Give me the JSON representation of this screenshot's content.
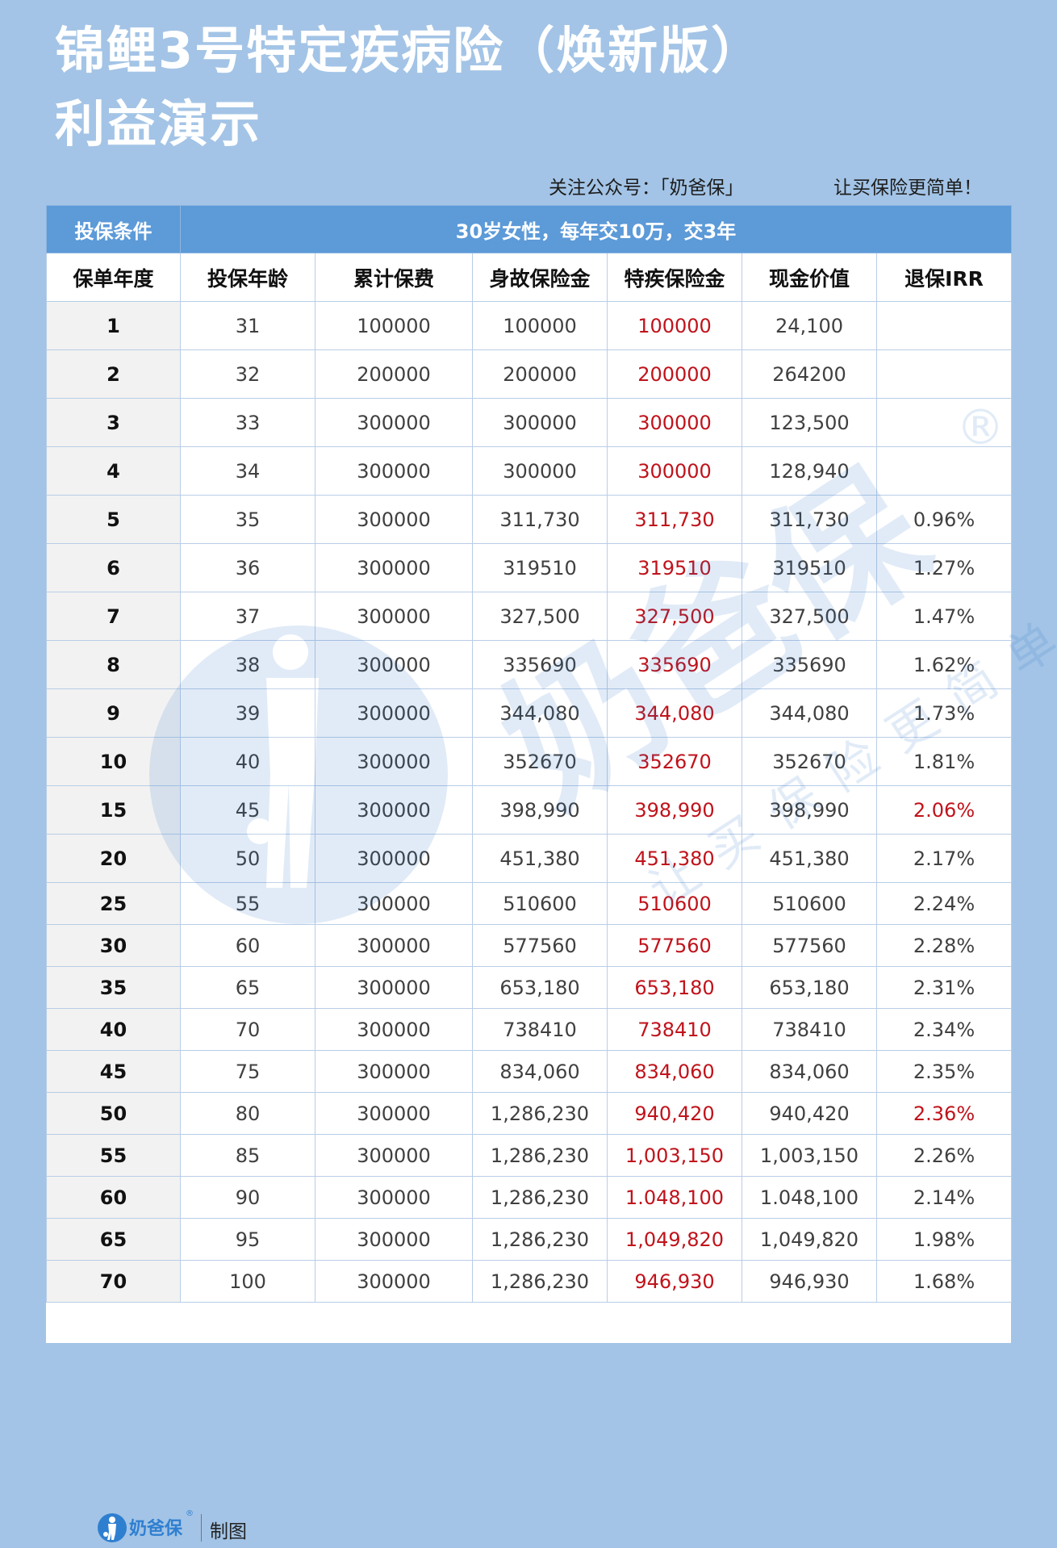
{
  "header": {
    "title_line1": "锦鲤3号特定疾病险（焕新版）",
    "title_line2": "利益演示",
    "follow_text": "关注公众号：「奶爸保」",
    "tagline": "让买保险更简单！"
  },
  "table": {
    "condition_label": "投保条件",
    "condition_value": "30岁女性，每年交10万，交3年",
    "columns": [
      "保单年度",
      "投保年龄",
      "累计保费",
      "身故保险金",
      "特疾保险金",
      "现金价值",
      "退保IRR"
    ],
    "rows": [
      {
        "year": "1",
        "age": "31",
        "premium": "100000",
        "death": "100000",
        "critical": "100000",
        "cash": "24,100",
        "irr": ""
      },
      {
        "year": "2",
        "age": "32",
        "premium": "200000",
        "death": "200000",
        "critical": "200000",
        "cash": "264200",
        "irr": ""
      },
      {
        "year": "3",
        "age": "33",
        "premium": "300000",
        "death": "300000",
        "critical": "300000",
        "cash": "123,500",
        "irr": ""
      },
      {
        "year": "4",
        "age": "34",
        "premium": "300000",
        "death": "300000",
        "critical": "300000",
        "cash": "128,940",
        "irr": ""
      },
      {
        "year": "5",
        "age": "35",
        "premium": "300000",
        "death": "311,730",
        "critical": "311,730",
        "cash": "311,730",
        "irr": "0.96%"
      },
      {
        "year": "6",
        "age": "36",
        "premium": "300000",
        "death": "319510",
        "critical": "319510",
        "cash": "319510",
        "irr": "1.27%"
      },
      {
        "year": "7",
        "age": "37",
        "premium": "300000",
        "death": "327,500",
        "critical": "327,500",
        "cash": "327,500",
        "irr": "1.47%"
      },
      {
        "year": "8",
        "age": "38",
        "premium": "300000",
        "death": "335690",
        "critical": "335690",
        "cash": "335690",
        "irr": "1.62%"
      },
      {
        "year": "9",
        "age": "39",
        "premium": "300000",
        "death": "344,080",
        "critical": "344,080",
        "cash": "344,080",
        "irr": "1.73%"
      },
      {
        "year": "10",
        "age": "40",
        "premium": "300000",
        "death": "352670",
        "critical": "352670",
        "cash": "352670",
        "irr": "1.81%"
      },
      {
        "year": "15",
        "age": "45",
        "premium": "300000",
        "death": "398,990",
        "critical": "398,990",
        "cash": "398,990",
        "irr": "2.06%",
        "irr_highlight": true
      },
      {
        "year": "20",
        "age": "50",
        "premium": "300000",
        "death": "451,380",
        "critical": "451,380",
        "cash": "451,380",
        "irr": "2.17%"
      },
      {
        "year": "25",
        "age": "55",
        "premium": "300000",
        "death": "510600",
        "critical": "510600",
        "cash": "510600",
        "irr": "2.24%"
      },
      {
        "year": "30",
        "age": "60",
        "premium": "300000",
        "death": "577560",
        "critical": "577560",
        "cash": "577560",
        "irr": "2.28%"
      },
      {
        "year": "35",
        "age": "65",
        "premium": "300000",
        "death": "653,180",
        "critical": "653,180",
        "cash": "653,180",
        "irr": "2.31%"
      },
      {
        "year": "40",
        "age": "70",
        "premium": "300000",
        "death": "738410",
        "critical": "738410",
        "cash": "738410",
        "irr": "2.34%"
      },
      {
        "year": "45",
        "age": "75",
        "premium": "300000",
        "death": "834,060",
        "critical": "834,060",
        "cash": "834,060",
        "irr": "2.35%"
      },
      {
        "year": "50",
        "age": "80",
        "premium": "300000",
        "death": "1,286,230",
        "critical": "940,420",
        "cash": "940,420",
        "irr": "2.36%",
        "irr_highlight": true
      },
      {
        "year": "55",
        "age": "85",
        "premium": "300000",
        "death": "1,286,230",
        "critical": "1,003,150",
        "cash": "1,003,150",
        "irr": "2.26%"
      },
      {
        "year": "60",
        "age": "90",
        "premium": "300000",
        "death": "1,286,230",
        "critical": "1.048,100",
        "cash": "1.048,100",
        "irr": "2.14%"
      },
      {
        "year": "65",
        "age": "95",
        "premium": "300000",
        "death": "1,286,230",
        "critical": "1,049,820",
        "cash": "1,049,820",
        "irr": "1.98%"
      },
      {
        "year": "70",
        "age": "100",
        "premium": "300000",
        "death": "1,286,230",
        "critical": "946,930",
        "cash": "946,930",
        "irr": "1.68%"
      }
    ]
  },
  "footer": {
    "logo_text": "奶爸保",
    "logo_mark": "®",
    "credit": "制图"
  },
  "watermark": {
    "brand": "奶爸保",
    "slogan": "让买保险更简单",
    "mark": "®"
  },
  "colors": {
    "background": "#a3c4e6",
    "header_band": "#5c9ad8",
    "accent_red": "#c0131b",
    "brand_blue": "#2f7fd0"
  }
}
